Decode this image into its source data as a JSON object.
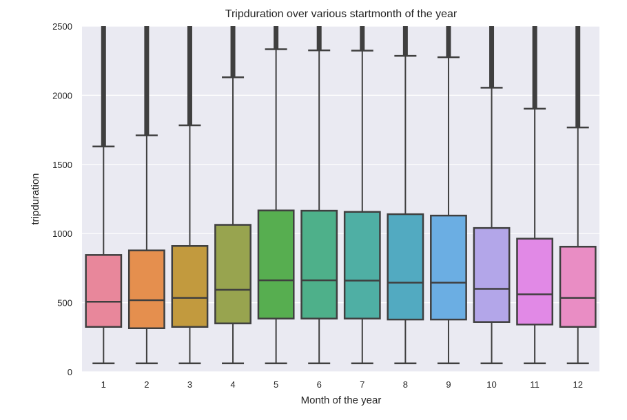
{
  "chart_data": {
    "type": "box",
    "title": "Tripduration over various startmonth of the year",
    "xlabel": "Month of the year",
    "ylabel": "tripduration",
    "ylim": [
      0,
      2500
    ],
    "yticks": [
      0,
      500,
      1000,
      1500,
      2000,
      2500
    ],
    "grid": true,
    "background": "#EAEAF2",
    "categories": [
      "1",
      "2",
      "3",
      "4",
      "5",
      "6",
      "7",
      "8",
      "9",
      "10",
      "11",
      "12"
    ],
    "boxes": [
      {
        "whisker_low": 61,
        "q1": 325,
        "median": 507,
        "q3": 845,
        "whisker_high": 1630,
        "color": "#E8879B"
      },
      {
        "whisker_low": 61,
        "q1": 315,
        "median": 518,
        "q3": 878,
        "whisker_high": 1710,
        "color": "#E58F4E"
      },
      {
        "whisker_low": 61,
        "q1": 325,
        "median": 535,
        "q3": 910,
        "whisker_high": 1783,
        "color": "#C29A3E"
      },
      {
        "whisker_low": 61,
        "q1": 350,
        "median": 593,
        "q3": 1063,
        "whisker_high": 2130,
        "color": "#98A44F"
      },
      {
        "whisker_low": 61,
        "q1": 385,
        "median": 662,
        "q3": 1167,
        "whisker_high": 2333,
        "color": "#57AE50"
      },
      {
        "whisker_low": 61,
        "q1": 385,
        "median": 662,
        "q3": 1165,
        "whisker_high": 2325,
        "color": "#4EB08A"
      },
      {
        "whisker_low": 61,
        "q1": 385,
        "median": 660,
        "q3": 1157,
        "whisker_high": 2323,
        "color": "#4FAFA4"
      },
      {
        "whisker_low": 61,
        "q1": 378,
        "median": 645,
        "q3": 1140,
        "whisker_high": 2285,
        "color": "#52AAC1"
      },
      {
        "whisker_low": 61,
        "q1": 378,
        "median": 645,
        "q3": 1130,
        "whisker_high": 2275,
        "color": "#6BAEE3"
      },
      {
        "whisker_low": 61,
        "q1": 360,
        "median": 600,
        "q3": 1040,
        "whisker_high": 2055,
        "color": "#B3A6E9"
      },
      {
        "whisker_low": 61,
        "q1": 342,
        "median": 560,
        "q3": 963,
        "whisker_high": 1903,
        "color": "#E189E6"
      },
      {
        "whisker_low": 61,
        "q1": 325,
        "median": 535,
        "q3": 905,
        "whisker_high": 1767,
        "color": "#E98DC4"
      }
    ]
  }
}
